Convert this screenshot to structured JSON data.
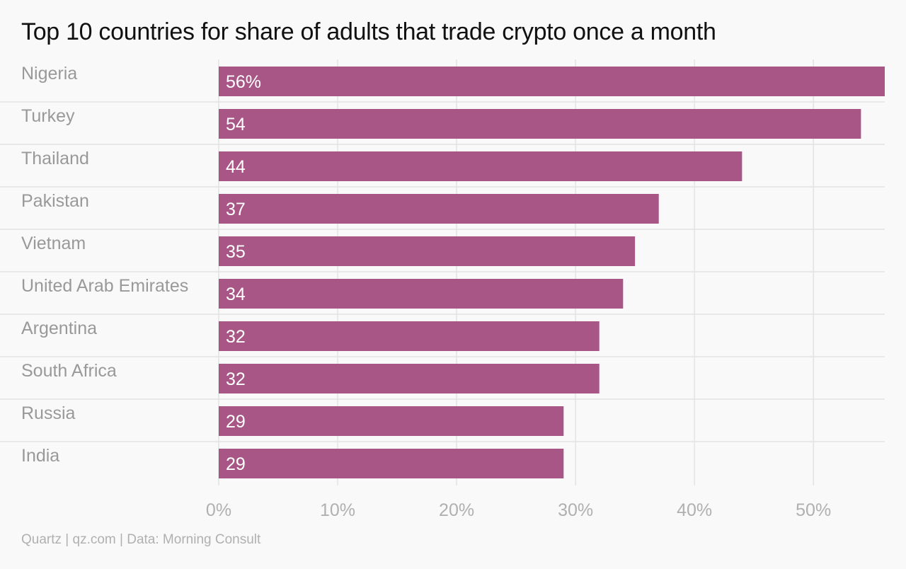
{
  "chart_data": {
    "type": "bar",
    "orientation": "horizontal",
    "title": "Top 10 countries for share of adults that trade crypto once a month",
    "source": "Quartz | qz.com | Data: Morning Consult",
    "categories": [
      "Nigeria",
      "Turkey",
      "Thailand",
      "Pakistan",
      "Vietnam",
      "United Arab Emirates",
      "Argentina",
      "South Africa",
      "Russia",
      "India"
    ],
    "values": [
      56,
      54,
      44,
      37,
      35,
      34,
      32,
      32,
      29,
      29
    ],
    "value_labels": [
      "56%",
      "54",
      "44",
      "37",
      "35",
      "34",
      "32",
      "32",
      "29",
      "29"
    ],
    "x_ticks": [
      0,
      10,
      20,
      30,
      40,
      50
    ],
    "x_tick_labels": [
      "0%",
      "10%",
      "20%",
      "30%",
      "40%",
      "50%"
    ],
    "xlim": [
      0,
      56
    ],
    "xlabel": "",
    "ylabel": "",
    "grid": true,
    "legend": "none",
    "colors": {
      "bar": "#a85686",
      "bar_label": "#ffffff",
      "category_label": "#999999",
      "tick_label": "#b0b0b0",
      "grid": "#e3e3e3",
      "background": "#f9f9f9"
    }
  }
}
